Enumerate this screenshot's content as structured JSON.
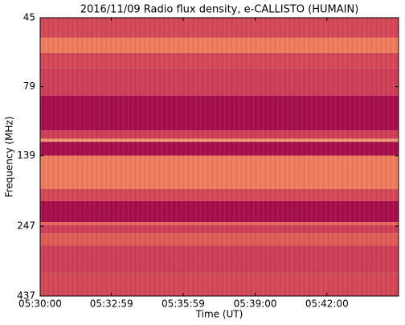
{
  "chart_data": {
    "type": "spectrogram",
    "title": "2016/11/09  Radio flux density, e-CALLISTO (HUMAIN)",
    "xlabel": "Time (UT)",
    "ylabel": "Frequency (MHz)",
    "xlim": [
      "05:30:00",
      "05:45:00"
    ],
    "xticks": [
      "05:30:00",
      "05:32:59",
      "05:35:59",
      "05:39:00",
      "05:42:00"
    ],
    "ylim": [
      45,
      437
    ],
    "yticks": [
      45,
      79,
      139,
      247,
      437
    ],
    "log_y": true,
    "y_inverted": true,
    "bands": [
      45,
      53,
      60,
      68,
      85,
      113,
      121,
      124,
      139,
      182,
      201,
      239,
      245,
      262,
      289,
      363,
      437
    ],
    "values": [
      0.45,
      0.7,
      0.45,
      0.4,
      0.1,
      0.4,
      0.8,
      0.1,
      0.7,
      0.45,
      0.1,
      0.6,
      0.4,
      0.55,
      0.4,
      0.45
    ],
    "colormap": [
      "#990044",
      "#c53358",
      "#ec7357",
      "#fcd898"
    ]
  }
}
